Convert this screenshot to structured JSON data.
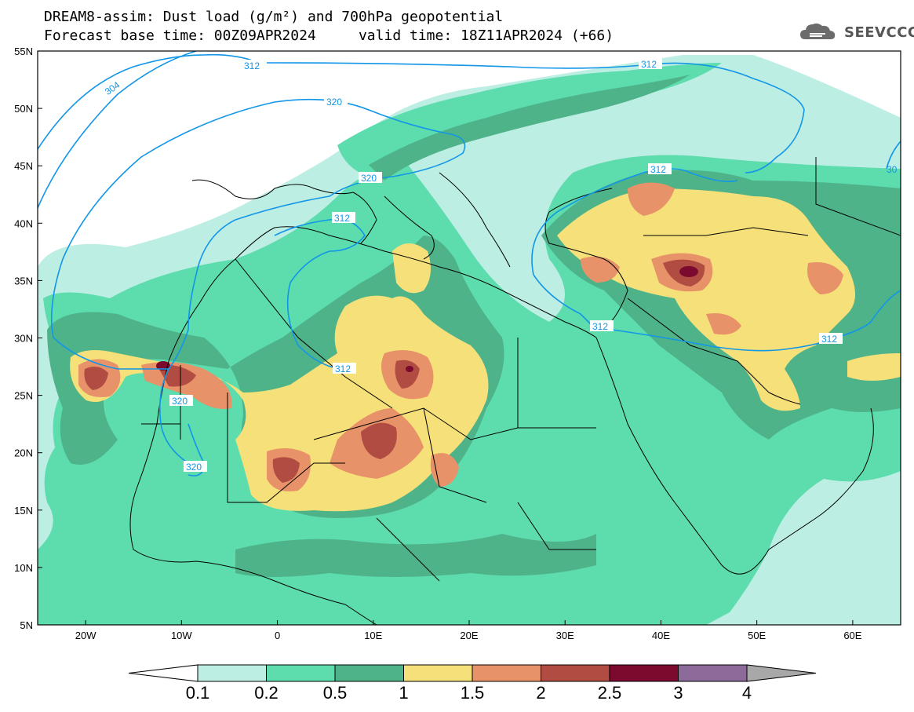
{
  "header": {
    "title_line1": "DREAM8-assim: Dust load (g/m²) and 700hPa geopotential",
    "title_line2": "Forecast base time: 00Z09APR2024     valid time: 18Z11APR2024 (+66)",
    "logo_text": "SEEVCCC",
    "logo_icon": "cloud-icon"
  },
  "map": {
    "lon_range": [
      -25,
      65
    ],
    "lat_range": [
      5,
      55
    ],
    "lat_ticks": [
      "5N",
      "10N",
      "15N",
      "20N",
      "25N",
      "30N",
      "35N",
      "40N",
      "45N",
      "50N",
      "55N"
    ],
    "lon_ticks": [
      "20W",
      "10W",
      "0",
      "10E",
      "20E",
      "30E",
      "40E",
      "50E",
      "60E"
    ],
    "contour_labels": [
      "304",
      "312",
      "320",
      "320",
      "312",
      "312",
      "312",
      "312",
      "312",
      "312",
      "320",
      "320",
      "30"
    ]
  },
  "colorbar": {
    "labels": [
      "0.1",
      "0.2",
      "0.5",
      "1",
      "1.5",
      "2",
      "2.5",
      "3",
      "4"
    ],
    "colors": {
      "lt_0.1": "#ffffff",
      "0.1-0.2": "#bdeee3",
      "0.2-0.5": "#5ddcae",
      "0.5-1": "#4fb38a",
      "1-1.5": "#f6e07a",
      "1.5-2": "#e79268",
      "2-2.5": "#b04c42",
      "2.5-3": "#7c0a2e",
      "3-4": "#8c6b9a",
      "gt_4": "#a8a8a8"
    }
  },
  "colors": {
    "contour": "#1296e8",
    "coast": "#000000"
  }
}
